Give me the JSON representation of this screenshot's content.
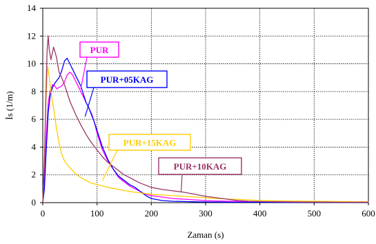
{
  "chart_data": {
    "type": "line",
    "title": "",
    "xlabel": "Zaman (s)",
    "ylabel": "İs (1/m)",
    "xlim": [
      0,
      600
    ],
    "ylim": [
      0,
      14
    ],
    "xticks": [
      "0",
      "100",
      "200",
      "300",
      "400",
      "500",
      "600"
    ],
    "yticks": [
      "0",
      "2",
      "4",
      "6",
      "8",
      "10",
      "12",
      "14"
    ],
    "grid": true,
    "series": [
      {
        "name": "PUR",
        "color": "#ff00ff",
        "x": [
          0,
          3,
          6,
          10,
          14,
          18,
          22,
          26,
          30,
          35,
          40,
          45,
          50,
          55,
          60,
          65,
          70,
          75,
          80,
          85,
          90,
          95,
          100,
          110,
          120,
          130,
          140,
          150,
          160,
          170,
          180,
          190,
          200,
          220,
          240,
          260,
          280,
          300,
          320,
          350,
          380,
          400,
          450,
          500,
          550,
          600
        ],
        "y": [
          0,
          1.5,
          4.5,
          7.2,
          8.1,
          8.5,
          8.4,
          8.2,
          8.3,
          8.4,
          8.7,
          9.2,
          9.4,
          9.2,
          8.8,
          8.4,
          8.0,
          7.6,
          7.2,
          6.8,
          6.4,
          5.8,
          5.0,
          3.8,
          3.0,
          2.4,
          1.8,
          1.5,
          1.2,
          1.0,
          0.8,
          0.6,
          0.5,
          0.4,
          0.3,
          0.25,
          0.2,
          0.15,
          0.12,
          0.1,
          0.08,
          0.07,
          0.06,
          0.05,
          0.05,
          0.05
        ]
      },
      {
        "name": "PUR+05KAG",
        "color": "#0000ff",
        "x": [
          0,
          3,
          6,
          10,
          14,
          18,
          22,
          26,
          30,
          35,
          40,
          45,
          50,
          55,
          60,
          65,
          70,
          75,
          80,
          85,
          90,
          95,
          100,
          110,
          120,
          130,
          140,
          150,
          160,
          170,
          180,
          190,
          200,
          220,
          240,
          260,
          280,
          300,
          320,
          350,
          380,
          400,
          450,
          500,
          550,
          600
        ],
        "y": [
          0,
          1.0,
          3.5,
          6.5,
          7.8,
          8.3,
          8.6,
          8.8,
          9.0,
          9.5,
          10.2,
          10.4,
          10.0,
          9.6,
          9.2,
          8.8,
          8.4,
          7.8,
          7.2,
          6.8,
          6.3,
          5.8,
          5.2,
          4.0,
          3.1,
          2.4,
          1.9,
          1.6,
          1.3,
          1.1,
          0.8,
          0.5,
          0.3,
          0.15,
          0.1,
          0.08,
          0.06,
          0.05,
          0.04,
          0.03,
          0.03,
          0.03,
          0.02,
          0.02,
          0.02,
          0.02
        ]
      },
      {
        "name": "PUR+15KAG",
        "color": "#ffcc00",
        "x": [
          0,
          3,
          6,
          9,
          12,
          15,
          20,
          25,
          30,
          35,
          40,
          50,
          60,
          70,
          80,
          90,
          100,
          110,
          120,
          140,
          160,
          180,
          200,
          220,
          240,
          260,
          280,
          300,
          320,
          350,
          380,
          400,
          450,
          500,
          550,
          600
        ],
        "y": [
          0,
          3.0,
          7.5,
          9.8,
          9.0,
          8.0,
          6.8,
          5.4,
          4.3,
          3.5,
          3.0,
          2.5,
          2.1,
          1.8,
          1.6,
          1.4,
          1.3,
          1.2,
          1.1,
          0.95,
          0.8,
          0.7,
          0.6,
          0.55,
          0.5,
          0.45,
          0.4,
          0.35,
          0.3,
          0.25,
          0.2,
          0.15,
          0.12,
          0.1,
          0.08,
          0.06
        ]
      },
      {
        "name": "PUR+10KAG",
        "color": "#993366",
        "x": [
          0,
          3,
          6,
          8,
          10,
          12,
          15,
          20,
          25,
          30,
          35,
          40,
          50,
          60,
          70,
          80,
          90,
          100,
          110,
          120,
          130,
          140,
          150,
          160,
          170,
          180,
          190,
          200,
          220,
          240,
          260,
          280,
          300,
          320,
          340,
          360,
          380,
          400,
          450,
          500,
          550,
          600
        ],
        "y": [
          0,
          3.0,
          8.0,
          11.0,
          12.0,
          11.0,
          10.3,
          11.2,
          10.5,
          9.4,
          9.0,
          8.5,
          7.3,
          6.4,
          5.6,
          4.9,
          4.3,
          3.8,
          3.3,
          2.9,
          2.6,
          2.3,
          2.0,
          1.8,
          1.6,
          1.4,
          1.25,
          1.1,
          0.95,
          0.85,
          0.75,
          0.6,
          0.45,
          0.35,
          0.25,
          0.15,
          0.1,
          0.08,
          0.05,
          0.04,
          0.03,
          0.03
        ]
      }
    ],
    "annotations": [
      {
        "text": "PUR",
        "color": "#ff00ff",
        "target_x": 70,
        "target_y": 8.2
      },
      {
        "text": "PUR+05KAG",
        "color": "#0000ff",
        "target_x": 78,
        "target_y": 6.2
      },
      {
        "text": "PUR+15KAG",
        "color": "#ffcc00",
        "target_x": 110,
        "target_y": 1.6
      },
      {
        "text": "PUR+10KAG",
        "color": "#993366",
        "target_x": 255,
        "target_y": 0.8
      }
    ]
  }
}
